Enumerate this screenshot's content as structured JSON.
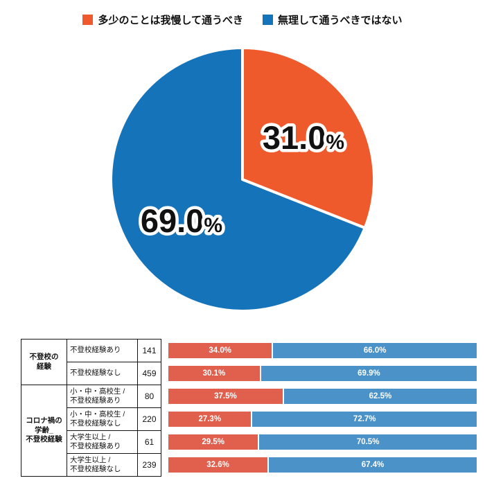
{
  "legend": {
    "items": [
      {
        "label": "多少のことは我慢して通うべき",
        "color": "#ef5a2c"
      },
      {
        "label": "無理して通うべきではない",
        "color": "#1573ba"
      }
    ]
  },
  "pie": {
    "labels": [
      {
        "num": "31.0",
        "pct": "%"
      },
      {
        "num": "69.0",
        "pct": "%"
      }
    ]
  },
  "table": {
    "groups": [
      {
        "label": "不登校の\n経験"
      },
      {
        "label": "コロナ禍の\n学齢_\n不登校経験"
      }
    ],
    "rows": [
      {
        "category": "不登校経験あり",
        "n": "141",
        "left_label": "34.0%",
        "right_label": "66.0%"
      },
      {
        "category": "不登校経験なし",
        "n": "459",
        "left_label": "30.1%",
        "right_label": "69.9%"
      },
      {
        "category": "小・中・高校生 /\n不登校経験あり",
        "n": "80",
        "left_label": "37.5%",
        "right_label": "62.5%"
      },
      {
        "category": "小・中・高校生 /\n不登校経験なし",
        "n": "220",
        "left_label": "27.3%",
        "right_label": "72.7%"
      },
      {
        "category": "大学生以上 /\n不登校経験あり",
        "n": "61",
        "left_label": "29.5%",
        "right_label": "70.5%"
      },
      {
        "category": "大学生以上 /\n不登校経験なし",
        "n": "239",
        "left_label": "32.6%",
        "right_label": "67.4%"
      }
    ]
  },
  "chart_data": [
    {
      "type": "pie",
      "labels": [
        "多少のことは我慢して通うべき",
        "無理して通うべきではない"
      ],
      "values": [
        31.0,
        69.0
      ],
      "value_labels": [
        "31.0%",
        "69.0%"
      ],
      "colors": [
        "#ef5a2c",
        "#1573ba"
      ],
      "legend_position": "top",
      "start_angle": "top",
      "direction": "clockwise"
    },
    {
      "type": "bar",
      "stacked": true,
      "orientation": "horizontal",
      "xlim": [
        0,
        100
      ],
      "categories": [
        "不登校経験あり",
        "不登校経験なし",
        "小・中・高校生 / 不登校経験あり",
        "小・中・高校生 / 不登校経験なし",
        "大学生以上 / 不登校経験あり",
        "大学生以上 / 不登校経験なし"
      ],
      "counts": [
        141,
        459,
        80,
        220,
        61,
        239
      ],
      "row_groups": [
        {
          "label": "不登校の経験",
          "span": 2
        },
        {
          "label": "コロナ禍の学齢_不登校経験",
          "span": 4
        }
      ],
      "series": [
        {
          "name": "多少のことは我慢して通うべき",
          "color": "#e0604d",
          "values": [
            34.0,
            30.1,
            37.5,
            27.3,
            29.5,
            32.6
          ]
        },
        {
          "name": "無理して通うべきではない",
          "color": "#4b92c8",
          "values": [
            66.0,
            69.9,
            62.5,
            72.7,
            70.5,
            67.4
          ]
        }
      ]
    }
  ]
}
